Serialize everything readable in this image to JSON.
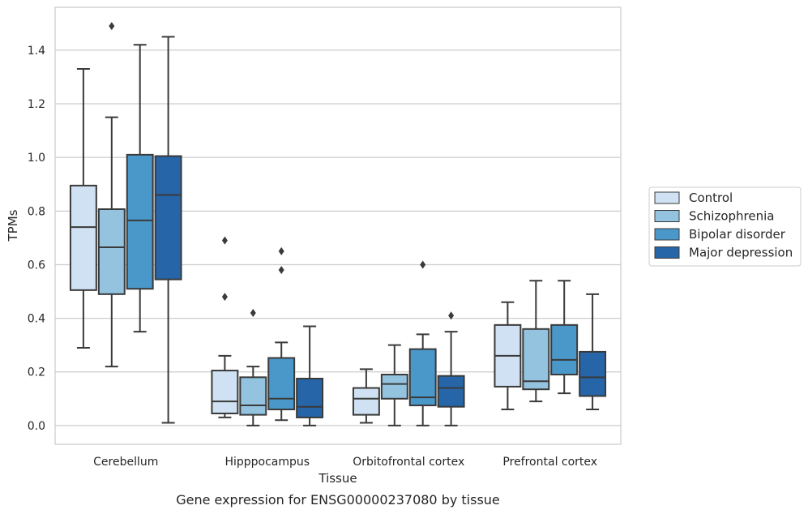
{
  "caption": "Gene expression for ENSG00000237080 by tissue",
  "chart_data": {
    "type": "box",
    "xlabel": "Tissue",
    "ylabel": "TPMs",
    "ylim": [
      -0.07,
      1.56
    ],
    "yticks": [
      "0.0",
      "0.2",
      "0.4",
      "0.6",
      "0.8",
      "1.0",
      "1.2",
      "1.4"
    ],
    "grid": "horizontal",
    "legend_position": "right",
    "categories": [
      "Cerebellum",
      "Hipppocampus",
      "Orbitofrontal cortex",
      "Prefrontal cortex"
    ],
    "series": [
      {
        "name": "Control",
        "color": "#cfe1f2",
        "boxes": [
          {
            "whislo": 0.29,
            "q1": 0.505,
            "med": 0.74,
            "q3": 0.895,
            "whishi": 1.33,
            "fliers": []
          },
          {
            "whislo": 0.03,
            "q1": 0.045,
            "med": 0.09,
            "q3": 0.205,
            "whishi": 0.26,
            "fliers": [
              0.48,
              0.69
            ]
          },
          {
            "whislo": 0.01,
            "q1": 0.04,
            "med": 0.1,
            "q3": 0.14,
            "whishi": 0.21,
            "fliers": []
          },
          {
            "whislo": 0.06,
            "q1": 0.145,
            "med": 0.26,
            "q3": 0.375,
            "whishi": 0.46,
            "fliers": []
          }
        ]
      },
      {
        "name": "Schizophrenia",
        "color": "#93c3df",
        "boxes": [
          {
            "whislo": 0.22,
            "q1": 0.49,
            "med": 0.665,
            "q3": 0.807,
            "whishi": 1.15,
            "fliers": [
              1.49
            ]
          },
          {
            "whislo": 0.0,
            "q1": 0.04,
            "med": 0.075,
            "q3": 0.18,
            "whishi": 0.22,
            "fliers": [
              0.42
            ]
          },
          {
            "whislo": 0.0,
            "q1": 0.1,
            "med": 0.155,
            "q3": 0.19,
            "whishi": 0.3,
            "fliers": []
          },
          {
            "whislo": 0.09,
            "q1": 0.135,
            "med": 0.165,
            "q3": 0.36,
            "whishi": 0.54,
            "fliers": []
          }
        ]
      },
      {
        "name": "Bipolar disorder",
        "color": "#4a98c9",
        "boxes": [
          {
            "whislo": 0.35,
            "q1": 0.51,
            "med": 0.765,
            "q3": 1.01,
            "whishi": 1.42,
            "fliers": []
          },
          {
            "whislo": 0.02,
            "q1": 0.06,
            "med": 0.1,
            "q3": 0.252,
            "whishi": 0.31,
            "fliers": [
              0.58,
              0.65
            ]
          },
          {
            "whislo": 0.0,
            "q1": 0.075,
            "med": 0.105,
            "q3": 0.285,
            "whishi": 0.34,
            "fliers": [
              0.6
            ]
          },
          {
            "whislo": 0.12,
            "q1": 0.19,
            "med": 0.245,
            "q3": 0.375,
            "whishi": 0.54,
            "fliers": []
          }
        ]
      },
      {
        "name": "Major depression",
        "color": "#2565a8",
        "boxes": [
          {
            "whislo": 0.01,
            "q1": 0.545,
            "med": 0.86,
            "q3": 1.005,
            "whishi": 1.45,
            "fliers": []
          },
          {
            "whislo": 0.0,
            "q1": 0.03,
            "med": 0.07,
            "q3": 0.175,
            "whishi": 0.37,
            "fliers": []
          },
          {
            "whislo": 0.0,
            "q1": 0.07,
            "med": 0.14,
            "q3": 0.185,
            "whishi": 0.35,
            "fliers": [
              0.41
            ]
          },
          {
            "whislo": 0.06,
            "q1": 0.11,
            "med": 0.18,
            "q3": 0.275,
            "whishi": 0.49,
            "fliers": []
          }
        ]
      }
    ]
  }
}
